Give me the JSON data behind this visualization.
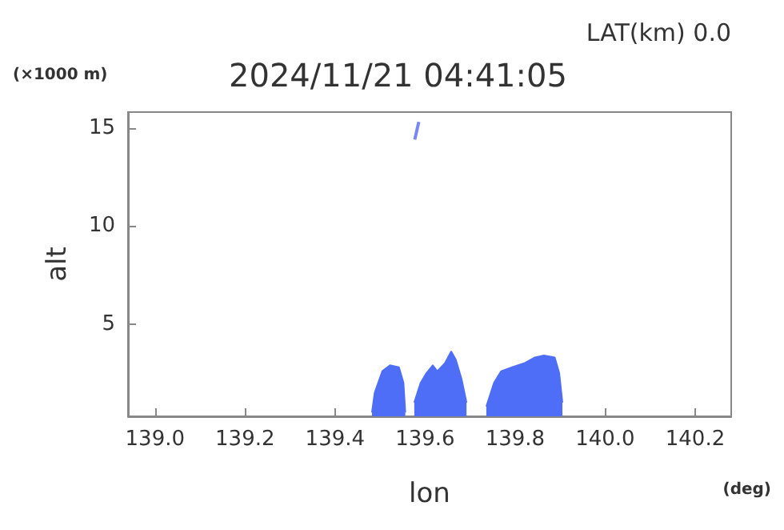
{
  "chart_data": {
    "type": "area",
    "title": "2024/11/21 04:41:05",
    "subtitle": "LAT(km) 0.0",
    "xlabel": "lon",
    "ylabel": "alt",
    "annotations": [
      "(×1000 m)",
      "(deg)"
    ],
    "xlim": [
      138.94,
      140.28
    ],
    "xticks": [
      {
        "value": 139.0,
        "label": "139.0"
      },
      {
        "value": 139.2,
        "label": "139.2"
      },
      {
        "value": 139.4,
        "label": "139.4"
      },
      {
        "value": 139.6,
        "label": "139.6"
      },
      {
        "value": 139.8,
        "label": "139.8"
      },
      {
        "value": 140.0,
        "label": "140.0"
      },
      {
        "value": 140.2,
        "label": "140.2"
      }
    ],
    "ylim": [
      0.3,
      15.8
    ],
    "yticks": [
      5,
      10,
      15
    ],
    "grid": false,
    "series": [
      {
        "color": "#4f6ef7",
        "x": [
          139.482,
          139.488,
          139.505,
          139.522,
          139.542,
          139.552,
          139.556
        ],
        "values": [
          0.5,
          1.5,
          2.6,
          2.9,
          2.8,
          2.0,
          0.5
        ]
      },
      {
        "color": "#4f6ef7",
        "x": [
          139.576,
          139.59,
          139.603,
          139.617,
          139.627,
          139.644,
          139.658,
          139.668,
          139.681,
          139.692
        ],
        "values": [
          1.0,
          2.0,
          2.5,
          2.9,
          2.6,
          3.0,
          3.6,
          3.2,
          2.2,
          1.0
        ]
      },
      {
        "color": "#4f6ef7",
        "x": [
          139.736,
          139.753,
          139.769,
          139.793,
          139.82,
          139.844,
          139.864,
          139.888,
          139.898,
          139.905
        ],
        "values": [
          0.8,
          2.0,
          2.6,
          2.8,
          3.0,
          3.3,
          3.4,
          3.3,
          2.5,
          1.0
        ]
      },
      {
        "type": "line",
        "color": "#7b86f5",
        "x": [
          139.577,
          139.586
        ],
        "values": [
          14.4,
          15.3
        ]
      }
    ]
  }
}
